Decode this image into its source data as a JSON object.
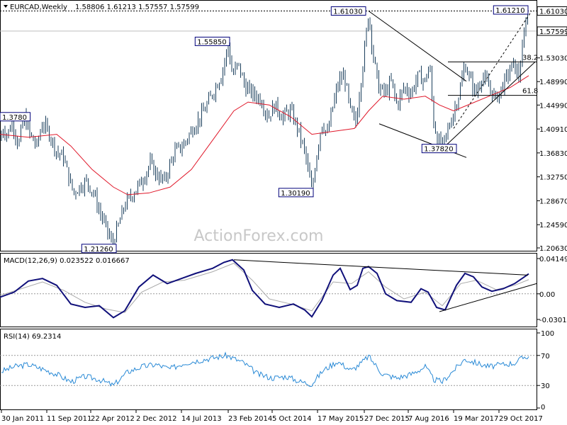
{
  "chart_data": [
    {
      "type": "candlestick",
      "title": "EURCAD,Weekly",
      "ohlc": [
        "1.58806",
        "1.61213",
        "1.57557",
        "1.57599"
      ],
      "ylim": [
        1.2063,
        1.6242
      ],
      "y_ticks": [
        "1.61030",
        "1.57599",
        "1.53030",
        "1.48990",
        "1.44990",
        "1.40910",
        "1.36830",
        "1.32750",
        "1.28670",
        "1.24590",
        "1.20630"
      ],
      "x_ticks": [
        "30 Jan 2011",
        "11 Sep 2011",
        "22 Apr 2012",
        "2 Dec 2012",
        "14 Jul 2013",
        "23 Feb 2014",
        "5 Oct 2014",
        "17 May 2015",
        "27 Dec 2015",
        "7 Aug 2016",
        "19 Mar 2017",
        "29 Oct 2017"
      ],
      "price_path": [
        [
          0,
          1.39
        ],
        [
          4,
          1.41
        ],
        [
          10,
          1.4
        ],
        [
          18,
          1.42
        ],
        [
          26,
          1.38
        ],
        [
          34,
          1.43
        ],
        [
          42,
          1.4
        ],
        [
          52,
          1.38
        ],
        [
          60,
          1.42
        ],
        [
          70,
          1.4
        ],
        [
          80,
          1.37
        ],
        [
          90,
          1.36
        ],
        [
          96,
          1.33
        ],
        [
          104,
          1.3
        ],
        [
          112,
          1.31
        ],
        [
          122,
          1.32
        ],
        [
          132,
          1.3
        ],
        [
          140,
          1.27
        ],
        [
          150,
          1.24
        ],
        [
          158,
          1.213
        ],
        [
          166,
          1.24
        ],
        [
          176,
          1.28
        ],
        [
          188,
          1.3
        ],
        [
          200,
          1.32
        ],
        [
          212,
          1.35
        ],
        [
          222,
          1.33
        ],
        [
          232,
          1.32
        ],
        [
          246,
          1.37
        ],
        [
          258,
          1.38
        ],
        [
          272,
          1.41
        ],
        [
          288,
          1.44
        ],
        [
          300,
          1.47
        ],
        [
          312,
          1.5
        ],
        [
          322,
          1.55
        ],
        [
          328,
          1.5
        ],
        [
          336,
          1.52
        ],
        [
          346,
          1.48
        ],
        [
          356,
          1.47
        ],
        [
          368,
          1.46
        ],
        [
          378,
          1.43
        ],
        [
          388,
          1.45
        ],
        [
          398,
          1.43
        ],
        [
          410,
          1.44
        ],
        [
          420,
          1.41
        ],
        [
          430,
          1.37
        ],
        [
          436,
          1.33
        ],
        [
          440,
          1.302
        ],
        [
          446,
          1.36
        ],
        [
          454,
          1.42
        ],
        [
          462,
          1.4
        ],
        [
          470,
          1.45
        ],
        [
          478,
          1.49
        ],
        [
          486,
          1.5
        ],
        [
          494,
          1.44
        ],
        [
          502,
          1.42
        ],
        [
          510,
          1.5
        ],
        [
          516,
          1.56
        ],
        [
          520,
          1.61
        ],
        [
          526,
          1.54
        ],
        [
          534,
          1.48
        ],
        [
          544,
          1.47
        ],
        [
          552,
          1.49
        ],
        [
          560,
          1.45
        ],
        [
          570,
          1.48
        ],
        [
          580,
          1.47
        ],
        [
          590,
          1.5
        ],
        [
          600,
          1.49
        ],
        [
          606,
          1.52
        ],
        [
          612,
          1.42
        ],
        [
          618,
          1.39
        ],
        [
          624,
          1.378
        ],
        [
          630,
          1.4
        ],
        [
          638,
          1.43
        ],
        [
          648,
          1.47
        ],
        [
          656,
          1.52
        ],
        [
          664,
          1.49
        ],
        [
          672,
          1.47
        ],
        [
          680,
          1.5
        ],
        [
          690,
          1.48
        ],
        [
          700,
          1.46
        ],
        [
          708,
          1.48
        ],
        [
          716,
          1.5
        ],
        [
          724,
          1.52
        ],
        [
          732,
          1.5
        ],
        [
          738,
          1.55
        ],
        [
          743,
          1.6121
        ],
        [
          746,
          1.576
        ]
      ],
      "ma_path": [
        [
          0,
          1.4
        ],
        [
          40,
          1.395
        ],
        [
          80,
          1.4
        ],
        [
          100,
          1.38
        ],
        [
          130,
          1.34
        ],
        [
          160,
          1.31
        ],
        [
          180,
          1.297
        ],
        [
          210,
          1.3
        ],
        [
          240,
          1.31
        ],
        [
          270,
          1.34
        ],
        [
          300,
          1.39
        ],
        [
          330,
          1.44
        ],
        [
          350,
          1.455
        ],
        [
          380,
          1.45
        ],
        [
          410,
          1.43
        ],
        [
          440,
          1.4
        ],
        [
          470,
          1.405
        ],
        [
          500,
          1.41
        ],
        [
          520,
          1.44
        ],
        [
          540,
          1.465
        ],
        [
          570,
          1.46
        ],
        [
          600,
          1.465
        ],
        [
          620,
          1.45
        ],
        [
          640,
          1.44
        ],
        [
          660,
          1.45
        ],
        [
          690,
          1.465
        ],
        [
          720,
          1.48
        ],
        [
          746,
          1.5
        ]
      ],
      "price_labels": [
        {
          "text": "1.61030",
          "x": 520,
          "y": 1.6103
        },
        {
          "text": "1.61210",
          "x": 743,
          "y": 1.6121
        },
        {
          "text": "1.55850",
          "x": 322,
          "y": 1.5585
        },
        {
          "text": "1.3780",
          "x": 0,
          "y": 1.43
        },
        {
          "text": "1.37820",
          "x": 624,
          "y": 1.3782
        },
        {
          "text": "1.30190",
          "x": 440,
          "y": 1.3019
        },
        {
          "text": "1.21260",
          "x": 158,
          "y": 1.2126
        }
      ],
      "fib_levels": [
        {
          "text": "38.2",
          "y": 1.5235
        },
        {
          "text": "61.8",
          "y": 1.4665
        }
      ],
      "trendlines": [
        {
          "x1": 520,
          "y1": 1.6103,
          "x2": 658,
          "y2": 1.4905
        },
        {
          "x1": 535,
          "y1": 1.418,
          "x2": 658,
          "y2": 1.3605
        },
        {
          "x1": 630,
          "y1": 1.382,
          "x2": 755,
          "y2": 1.5235
        },
        {
          "x1": 640,
          "y1": 1.41,
          "x2": 750,
          "y2": 1.61,
          "dash": true
        }
      ],
      "watermark": "ActionForex.com"
    },
    {
      "type": "line",
      "title": "MACD(12,26,9) 0.023522 0.016667",
      "ylim": [
        -0.036,
        0.044
      ],
      "y_ticks": [
        "0.041491",
        "0.00",
        "-0.030146"
      ],
      "macd_path": [
        [
          0,
          -0.004
        ],
        [
          20,
          0.002
        ],
        [
          40,
          0.015
        ],
        [
          60,
          0.018
        ],
        [
          80,
          0.01
        ],
        [
          100,
          -0.012
        ],
        [
          120,
          -0.016
        ],
        [
          140,
          -0.014
        ],
        [
          160,
          -0.028
        ],
        [
          176,
          -0.02
        ],
        [
          196,
          0.008
        ],
        [
          216,
          0.022
        ],
        [
          236,
          0.012
        ],
        [
          256,
          0.018
        ],
        [
          276,
          0.024
        ],
        [
          300,
          0.03
        ],
        [
          316,
          0.037
        ],
        [
          328,
          0.04
        ],
        [
          344,
          0.028
        ],
        [
          356,
          0.004
        ],
        [
          374,
          -0.012
        ],
        [
          394,
          -0.016
        ],
        [
          414,
          -0.012
        ],
        [
          430,
          -0.019
        ],
        [
          440,
          -0.027
        ],
        [
          454,
          -0.008
        ],
        [
          470,
          0.022
        ],
        [
          480,
          0.03
        ],
        [
          494,
          0.005
        ],
        [
          504,
          0.01
        ],
        [
          512,
          0.03
        ],
        [
          520,
          0.032
        ],
        [
          532,
          0.024
        ],
        [
          544,
          0.0
        ],
        [
          560,
          -0.008
        ],
        [
          580,
          -0.01
        ],
        [
          594,
          0.006
        ],
        [
          604,
          0.002
        ],
        [
          616,
          -0.016
        ],
        [
          628,
          -0.019
        ],
        [
          644,
          0.01
        ],
        [
          656,
          0.024
        ],
        [
          668,
          0.02
        ],
        [
          680,
          0.008
        ],
        [
          694,
          0.003
        ],
        [
          710,
          0.006
        ],
        [
          726,
          0.012
        ],
        [
          740,
          0.02
        ],
        [
          746,
          0.0235
        ]
      ],
      "signal_path": [
        [
          0,
          -0.002
        ],
        [
          30,
          0.006
        ],
        [
          60,
          0.014
        ],
        [
          90,
          0.004
        ],
        [
          120,
          -0.01
        ],
        [
          150,
          -0.018
        ],
        [
          176,
          -0.022
        ],
        [
          200,
          0.002
        ],
        [
          230,
          0.014
        ],
        [
          260,
          0.016
        ],
        [
          300,
          0.026
        ],
        [
          330,
          0.036
        ],
        [
          356,
          0.016
        ],
        [
          380,
          -0.006
        ],
        [
          410,
          -0.012
        ],
        [
          440,
          -0.02
        ],
        [
          470,
          0.014
        ],
        [
          496,
          0.012
        ],
        [
          520,
          0.026
        ],
        [
          544,
          0.008
        ],
        [
          570,
          -0.006
        ],
        [
          600,
          0.002
        ],
        [
          624,
          -0.014
        ],
        [
          650,
          0.012
        ],
        [
          672,
          0.016
        ],
        [
          700,
          0.005
        ],
        [
          726,
          0.01
        ],
        [
          746,
          0.0167
        ]
      ],
      "trendlines": [
        {
          "x1": 330,
          "y1": 0.04,
          "x2": 745,
          "y2": 0.022
        },
        {
          "x1": 620,
          "y1": -0.021,
          "x2": 757,
          "y2": 0.012
        }
      ]
    },
    {
      "type": "line",
      "title": "RSI(14) 69.2314",
      "ylim": [
        0,
        100
      ],
      "y_ticks": [
        "100",
        "70",
        "30",
        "0"
      ],
      "rsi_path": [
        [
          0,
          48
        ],
        [
          20,
          55
        ],
        [
          40,
          58
        ],
        [
          60,
          52
        ],
        [
          80,
          45
        ],
        [
          100,
          35
        ],
        [
          120,
          42
        ],
        [
          140,
          38
        ],
        [
          160,
          30
        ],
        [
          180,
          48
        ],
        [
          200,
          55
        ],
        [
          220,
          58
        ],
        [
          240,
          52
        ],
        [
          260,
          60
        ],
        [
          290,
          65
        ],
        [
          320,
          70
        ],
        [
          344,
          60
        ],
        [
          364,
          45
        ],
        [
          384,
          40
        ],
        [
          404,
          42
        ],
        [
          424,
          35
        ],
        [
          440,
          32
        ],
        [
          456,
          50
        ],
        [
          476,
          62
        ],
        [
          496,
          50
        ],
        [
          510,
          60
        ],
        [
          520,
          69
        ],
        [
          540,
          45
        ],
        [
          560,
          40
        ],
        [
          580,
          45
        ],
        [
          600,
          55
        ],
        [
          612,
          38
        ],
        [
          624,
          35
        ],
        [
          640,
          50
        ],
        [
          656,
          65
        ],
        [
          672,
          60
        ],
        [
          690,
          55
        ],
        [
          710,
          58
        ],
        [
          726,
          60
        ],
        [
          740,
          68
        ],
        [
          746,
          69.23
        ]
      ]
    }
  ]
}
